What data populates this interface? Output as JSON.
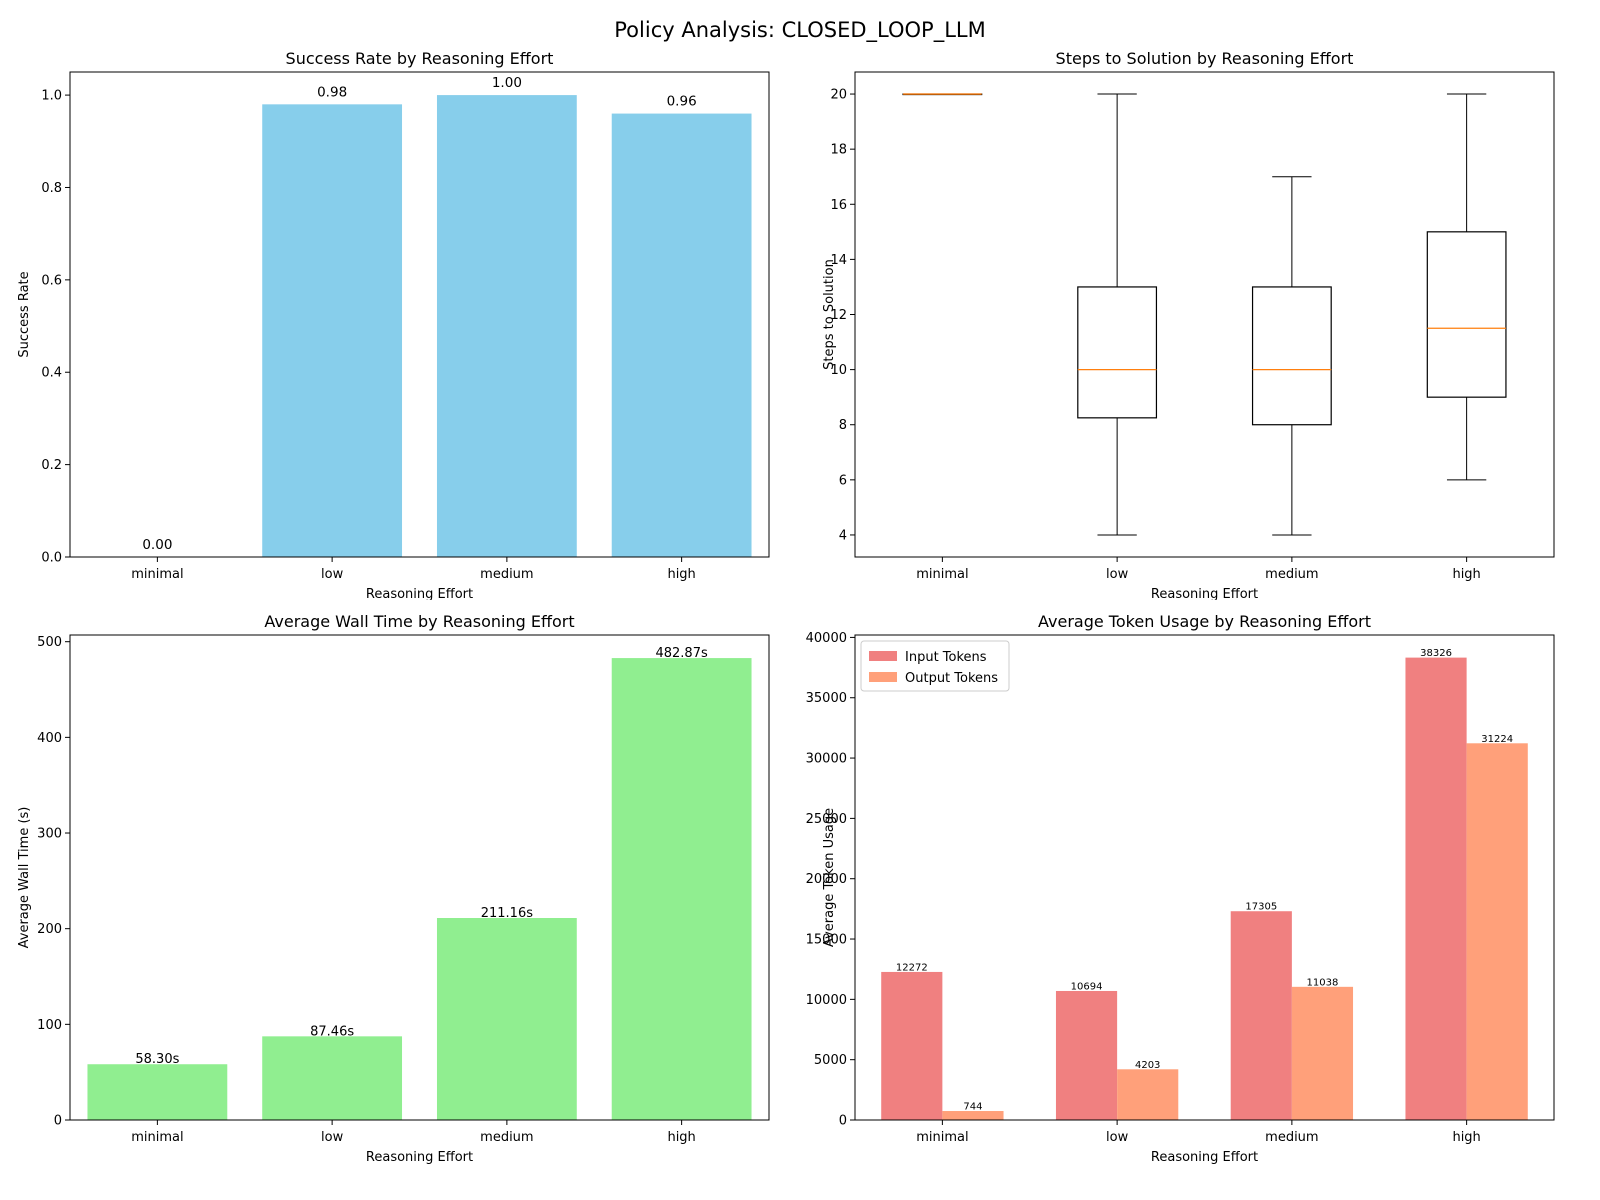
{
  "figure_title": "Policy Analysis: CLOSED_LOOP_LLM",
  "colors": {
    "success_bar": "#87CEEB",
    "walltime_bar": "#90EE90",
    "input_tokens": "#F08080",
    "output_tokens": "#FFA07A",
    "median_line": "#FF7F0E"
  },
  "chart_data": [
    {
      "type": "bar",
      "title": "Success Rate by Reasoning Effort",
      "xlabel": "Reasoning Effort",
      "ylabel": "Success Rate",
      "categories": [
        "minimal",
        "low",
        "medium",
        "high"
      ],
      "values": [
        0.0,
        0.98,
        1.0,
        0.96
      ],
      "value_labels": [
        "0.00",
        "0.98",
        "1.00",
        "0.96"
      ],
      "ylim": [
        0,
        1.05
      ],
      "yticks": [
        0.0,
        0.2,
        0.4,
        0.6,
        0.8,
        1.0
      ],
      "ytick_labels": [
        "0.0",
        "0.2",
        "0.4",
        "0.6",
        "0.8",
        "1.0"
      ],
      "grid": false
    },
    {
      "type": "box",
      "title": "Steps to Solution by Reasoning Effort",
      "xlabel": "Reasoning Effort",
      "ylabel": "Steps to Solution",
      "categories": [
        "minimal",
        "low",
        "medium",
        "high"
      ],
      "boxes": [
        {
          "whisker_low": 20,
          "q1": 20,
          "median": 20,
          "q3": 20,
          "whisker_high": 20
        },
        {
          "whisker_low": 4,
          "q1": 8.25,
          "median": 10,
          "q3": 13,
          "whisker_high": 20
        },
        {
          "whisker_low": 4,
          "q1": 8,
          "median": 10,
          "q3": 13,
          "whisker_high": 17
        },
        {
          "whisker_low": 6,
          "q1": 9,
          "median": 11.5,
          "q3": 15,
          "whisker_high": 20
        }
      ],
      "ylim": [
        3.2,
        20.8
      ],
      "yticks": [
        4,
        6,
        8,
        10,
        12,
        14,
        16,
        18,
        20
      ],
      "ytick_labels": [
        "4",
        "6",
        "8",
        "10",
        "12",
        "14",
        "16",
        "18",
        "20"
      ],
      "grid": false
    },
    {
      "type": "bar",
      "title": "Average Wall Time by Reasoning Effort",
      "xlabel": "Reasoning Effort",
      "ylabel": "Average Wall Time (s)",
      "categories": [
        "minimal",
        "low",
        "medium",
        "high"
      ],
      "values": [
        58.3,
        87.46,
        211.16,
        482.87
      ],
      "value_labels": [
        "58.30s",
        "87.46s",
        "211.16s",
        "482.87s"
      ],
      "ylim": [
        0,
        507
      ],
      "yticks": [
        0,
        100,
        200,
        300,
        400,
        500
      ],
      "ytick_labels": [
        "0",
        "100",
        "200",
        "300",
        "400",
        "500"
      ],
      "grid": false
    },
    {
      "type": "bar",
      "title": "Average Token Usage by Reasoning Effort",
      "xlabel": "Reasoning Effort",
      "ylabel": "Average Token Usage",
      "categories": [
        "minimal",
        "low",
        "medium",
        "high"
      ],
      "series": [
        {
          "name": "Input Tokens",
          "values": [
            12272,
            10694,
            17305,
            38326
          ],
          "value_labels": [
            "12272",
            "10694",
            "17305",
            "38326"
          ]
        },
        {
          "name": "Output Tokens",
          "values": [
            744,
            4203,
            11038,
            31224
          ],
          "value_labels": [
            "744",
            "4203",
            "11038",
            "31224"
          ]
        }
      ],
      "ylim": [
        0,
        40200
      ],
      "yticks": [
        0,
        5000,
        10000,
        15000,
        20000,
        25000,
        30000,
        35000,
        40000
      ],
      "ytick_labels": [
        "0",
        "5000",
        "10000",
        "15000",
        "20000",
        "25000",
        "30000",
        "35000",
        "40000"
      ],
      "legend": "top-left",
      "grid": false
    }
  ]
}
